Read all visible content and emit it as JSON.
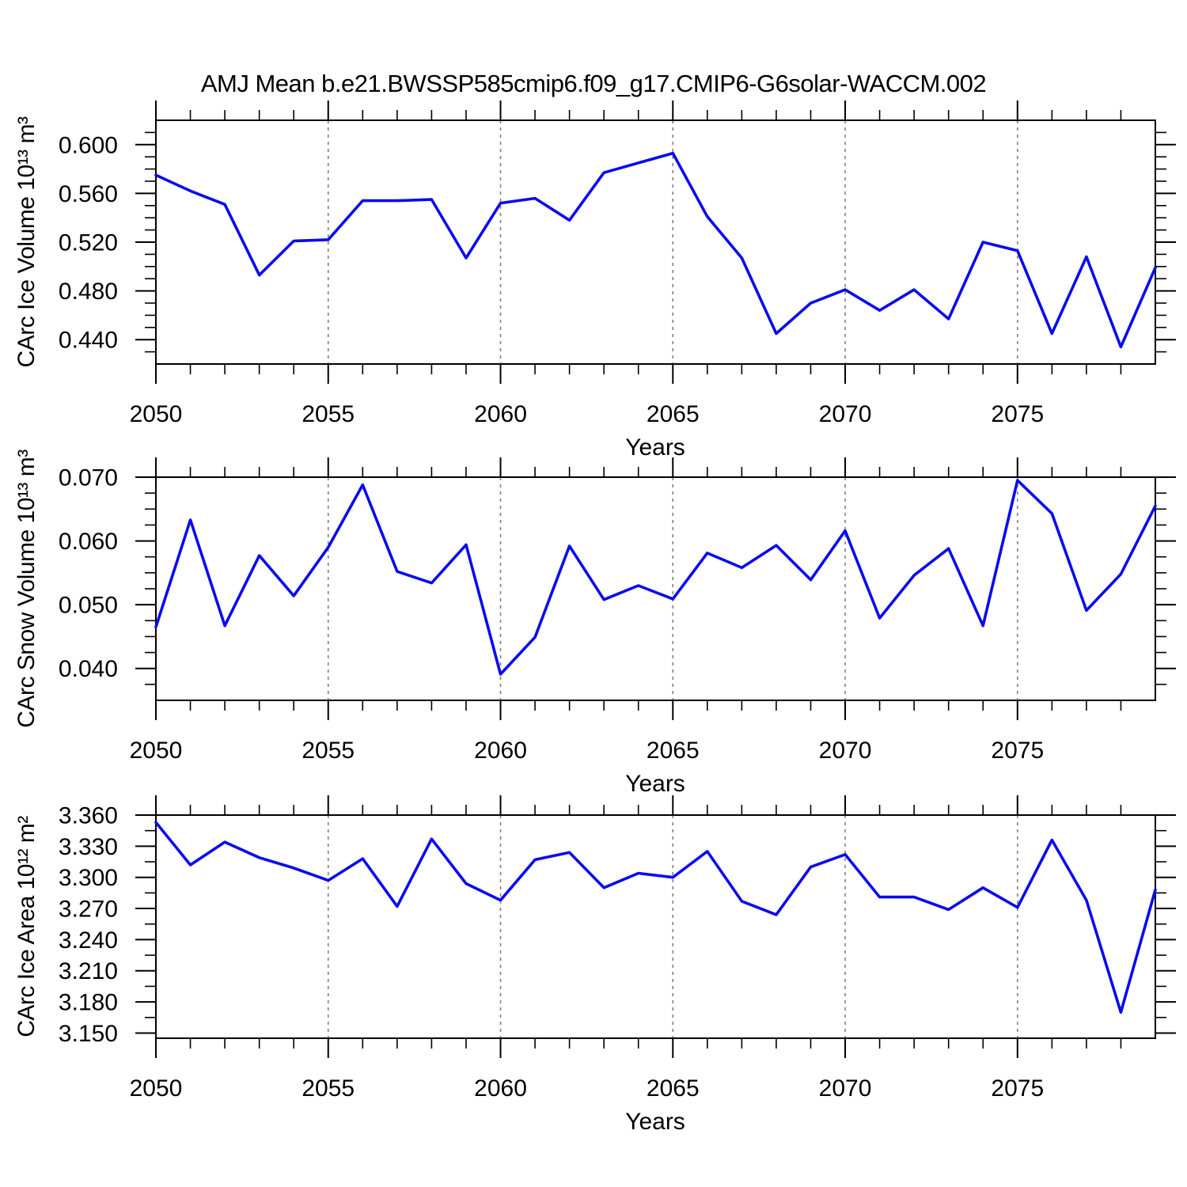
{
  "title": "AMJ Mean b.e21.BWSSP585cmip6.f09_g17.CMIP6-G6solar-WACCM.002",
  "colors": {
    "line": "#0a0af0",
    "grid": "#808080",
    "frame": "#000000",
    "background": "#ffffff"
  },
  "chart_data": [
    {
      "id": "ice-volume",
      "type": "line",
      "title": "",
      "xlabel": "Years",
      "ylabel": "CArc Ice Volume 10¹³ m³",
      "legend": "none",
      "grid": "vertical-dashed-at-x-majors",
      "x": [
        2050,
        2051,
        2052,
        2053,
        2054,
        2055,
        2056,
        2057,
        2058,
        2059,
        2060,
        2061,
        2062,
        2063,
        2064,
        2065,
        2066,
        2067,
        2068,
        2069,
        2070,
        2071,
        2072,
        2073,
        2074,
        2075,
        2076,
        2077,
        2078,
        2079
      ],
      "values": [
        0.575,
        0.562,
        0.551,
        0.493,
        0.521,
        0.522,
        0.554,
        0.554,
        0.555,
        0.507,
        0.552,
        0.556,
        0.538,
        0.577,
        0.585,
        0.593,
        0.541,
        0.507,
        0.445,
        0.47,
        0.481,
        0.464,
        0.481,
        0.457,
        0.52,
        0.513,
        0.445,
        0.508,
        0.434,
        0.499
      ],
      "xlim": [
        2050,
        2079
      ],
      "ylim": [
        0.42,
        0.62
      ],
      "xticks": [
        2050,
        2055,
        2060,
        2065,
        2070,
        2075
      ],
      "xtick_labels": [
        "2050",
        "2055",
        "2060",
        "2065",
        "2070",
        "2075"
      ],
      "x_minor_step": 1,
      "yticks": [
        0.44,
        0.48,
        0.52,
        0.56,
        0.6
      ],
      "ytick_labels": [
        "0.440",
        "0.480",
        "0.520",
        "0.560",
        "0.600"
      ],
      "y_minor_step": 0.01
    },
    {
      "id": "snow-volume",
      "type": "line",
      "title": "",
      "xlabel": "Years",
      "ylabel": "CArc Snow Volume 10¹³ m³",
      "legend": "none",
      "grid": "vertical-dashed-at-x-majors",
      "x": [
        2050,
        2051,
        2052,
        2053,
        2054,
        2055,
        2056,
        2057,
        2058,
        2059,
        2060,
        2061,
        2062,
        2063,
        2064,
        2065,
        2066,
        2067,
        2068,
        2069,
        2070,
        2071,
        2072,
        2073,
        2074,
        2075,
        2076,
        2077,
        2078,
        2079
      ],
      "values": [
        0.0465,
        0.0633,
        0.0467,
        0.0577,
        0.0514,
        0.059,
        0.0688,
        0.0552,
        0.0534,
        0.0594,
        0.0391,
        0.0449,
        0.0592,
        0.0508,
        0.053,
        0.0509,
        0.0581,
        0.0558,
        0.0593,
        0.0539,
        0.0616,
        0.0479,
        0.0546,
        0.0588,
        0.0467,
        0.0695,
        0.0643,
        0.0491,
        0.0548,
        0.0655
      ],
      "xlim": [
        2050,
        2079
      ],
      "ylim": [
        0.035,
        0.07
      ],
      "xticks": [
        2050,
        2055,
        2060,
        2065,
        2070,
        2075
      ],
      "xtick_labels": [
        "2050",
        "2055",
        "2060",
        "2065",
        "2070",
        "2075"
      ],
      "x_minor_step": 1,
      "yticks": [
        0.04,
        0.05,
        0.06,
        0.07
      ],
      "ytick_labels": [
        "0.040",
        "0.050",
        "0.060",
        "0.070"
      ],
      "y_minor_step": 0.0025
    },
    {
      "id": "ice-area",
      "type": "line",
      "title": "",
      "xlabel": "Years",
      "ylabel": "CArc Ice Area 10¹² m²",
      "legend": "none",
      "grid": "vertical-dashed-at-x-majors",
      "x": [
        2050,
        2051,
        2052,
        2053,
        2054,
        2055,
        2056,
        2057,
        2058,
        2059,
        2060,
        2061,
        2062,
        2063,
        2064,
        2065,
        2066,
        2067,
        2068,
        2069,
        2070,
        2071,
        2072,
        2073,
        2074,
        2075,
        2076,
        2077,
        2078,
        2079
      ],
      "values": [
        3.353,
        3.312,
        3.334,
        3.319,
        3.309,
        3.297,
        3.318,
        3.272,
        3.337,
        3.294,
        3.278,
        3.317,
        3.324,
        3.29,
        3.304,
        3.3,
        3.325,
        3.277,
        3.264,
        3.31,
        3.322,
        3.281,
        3.281,
        3.269,
        3.29,
        3.271,
        3.336,
        3.278,
        3.17,
        3.288
      ],
      "xlim": [
        2050,
        2079
      ],
      "ylim": [
        3.145,
        3.36
      ],
      "xticks": [
        2050,
        2055,
        2060,
        2065,
        2070,
        2075
      ],
      "xtick_labels": [
        "2050",
        "2055",
        "2060",
        "2065",
        "2070",
        "2075"
      ],
      "x_minor_step": 1,
      "yticks": [
        3.15,
        3.18,
        3.21,
        3.24,
        3.27,
        3.3,
        3.33,
        3.36
      ],
      "ytick_labels": [
        "3.150",
        "3.180",
        "3.210",
        "3.240",
        "3.270",
        "3.300",
        "3.330",
        "3.360"
      ],
      "y_minor_step": 0.015
    }
  ]
}
